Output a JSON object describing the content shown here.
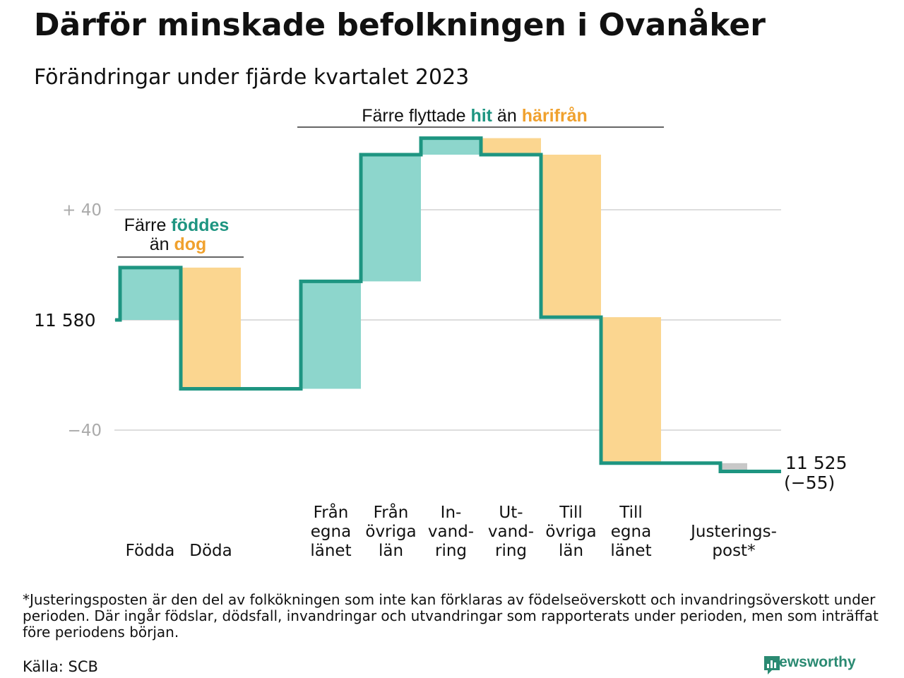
{
  "title": "Därför minskade befolkningen i Ovanåker",
  "subtitle": "Förändringar under fjärde kvartalet 2023",
  "colors": {
    "increase_fill": "#8dd6cc",
    "decrease_fill": "#fbd690",
    "adjustment_fill": "#c8c8c8",
    "line": "#1e9581",
    "teal_text": "#1e9581",
    "orange_text": "#f0a12e",
    "grid": "#dddddd",
    "tick_text": "#aaaaaa"
  },
  "chart_data": {
    "type": "waterfall",
    "start_label": "11  580",
    "end_label_value": "11 525",
    "end_label_change": "(−55)",
    "start_value": 11580,
    "end_value": 11525,
    "y_ticks": [
      {
        "offset": 40,
        "label": "+  40"
      },
      {
        "offset": 0,
        "label": ""
      },
      {
        "offset": -40,
        "label": "−40"
      }
    ],
    "steps": [
      {
        "lines": [
          "Födda"
        ],
        "change": 19,
        "color": "increase"
      },
      {
        "lines": [
          "Döda"
        ],
        "change": -44,
        "color": "decrease"
      },
      {
        "lines": [
          "Från",
          "egna",
          "länet"
        ],
        "change": 39,
        "color": "increase"
      },
      {
        "lines": [
          "Från",
          "övriga",
          "län"
        ],
        "change": 46,
        "color": "increase"
      },
      {
        "lines": [
          "In-",
          "vand-",
          "ring"
        ],
        "change": 6,
        "color": "increase"
      },
      {
        "lines": [
          "Ut-",
          "vand-",
          "ring"
        ],
        "change": -6,
        "color": "decrease"
      },
      {
        "lines": [
          "Till",
          "övriga",
          "län"
        ],
        "change": -59,
        "color": "decrease"
      },
      {
        "lines": [
          "Till",
          "egna",
          "länet"
        ],
        "change": -53,
        "color": "decrease"
      },
      {
        "lines": [
          "Justerings-",
          "post*"
        ],
        "change": -3,
        "color": "adjustment"
      }
    ],
    "annotations": [
      {
        "parts": [
          {
            "text": "Färre ",
            "style": "plain"
          },
          {
            "text": "föddes",
            "style": "teal"
          }
        ],
        "parts2": [
          {
            "text": "än ",
            "style": "plain"
          },
          {
            "text": "dog",
            "style": "orange"
          }
        ]
      },
      {
        "parts": [
          {
            "text": "Färre flyttade ",
            "style": "plain"
          },
          {
            "text": "hit",
            "style": "teal"
          },
          {
            "text": "  än ",
            "style": "plain"
          },
          {
            "text": "härifrån",
            "style": "orange"
          }
        ]
      }
    ]
  },
  "footnote": "*Justeringsposten är den del av folkökningen som inte kan förklaras av födelseöverskott och invandringsöverskott under perioden. Där ingår födslar, dödsfall, invandringar och utvandringar som rapporterats under perioden, men som inträffat före periodens början.",
  "source": "Källa: SCB",
  "brand": {
    "name": "Newsworthy",
    "icon": "newsworthy-logo-icon"
  }
}
